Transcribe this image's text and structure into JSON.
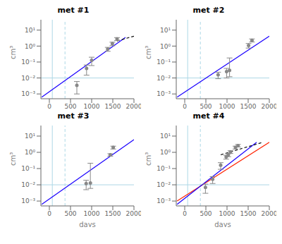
{
  "chart_data": [
    {
      "type": "line",
      "title": "met #1",
      "y_label": "cm³",
      "log": "y",
      "grid": false,
      "xlim": [
        -200,
        2000
      ],
      "xticks": [
        0,
        500,
        1000,
        1500,
        2000
      ],
      "ylim": [
        0.00050118723,
        44.668359
      ],
      "yticks": [
        {
          "value": 0.001,
          "label": "10⁻³"
        },
        {
          "value": 0.01,
          "label": "10⁻²"
        },
        {
          "value": 0.1,
          "label": "10⁻¹"
        },
        {
          "value": 1,
          "label": "10⁰"
        },
        {
          "value": 10,
          "label": "10¹"
        }
      ],
      "hlines": [
        {
          "y": 0.01,
          "color": "#add8e6",
          "line_style": "solid"
        }
      ],
      "vlines": [
        {
          "x": 70,
          "color": "#add8e6",
          "line_style": "solid"
        },
        {
          "x": 370,
          "color": "#add8e6",
          "line_style": "dashed"
        }
      ],
      "series": [
        {
          "type": "line",
          "color": "#1a00ff",
          "line_style": "solid",
          "x": [
            -180,
            1800
          ],
          "values": [
            0.00063095734,
            3.5481339
          ]
        },
        {
          "type": "line",
          "color": "#111111",
          "line_style": "dashed",
          "x": [
            1600,
            2000
          ],
          "values": [
            2.0892961,
            4.1686938
          ]
        },
        {
          "type": "scatter",
          "color": "#888888",
          "marker": "circle",
          "x": [
            650,
            880,
            1000,
            1380,
            1490,
            1600
          ],
          "values": [
            0.0035,
            0.04,
            0.13,
            0.65,
            1.4,
            2.8
          ],
          "error_low": [
            0.0025,
            0.025,
            0.07,
            0.18,
            0.35,
            0.6
          ],
          "error_high": [
            0.0025,
            0.025,
            0.07,
            0.18,
            0.35,
            0.6
          ]
        }
      ]
    },
    {
      "type": "line",
      "title": "met #2",
      "y_label": "cm³",
      "log": "y",
      "grid": false,
      "xlim": [
        -200,
        2000
      ],
      "xticks": [
        0,
        500,
        1000,
        1500,
        2000
      ],
      "ylim": [
        0.00050118723,
        44.668359
      ],
      "yticks": [
        {
          "value": 0.001,
          "label": "10⁻³"
        },
        {
          "value": 0.01,
          "label": "10⁻²"
        },
        {
          "value": 0.1,
          "label": "10⁻¹"
        },
        {
          "value": 1,
          "label": "10⁰"
        },
        {
          "value": 10,
          "label": "10¹"
        }
      ],
      "hlines": [
        {
          "y": 0.01,
          "color": "#add8e6",
          "line_style": "solid"
        }
      ],
      "vlines": [
        {
          "x": 70,
          "color": "#add8e6",
          "line_style": "solid"
        },
        {
          "x": 370,
          "color": "#add8e6",
          "line_style": "dashed"
        }
      ],
      "series": [
        {
          "type": "line",
          "color": "#1a00ff",
          "line_style": "solid",
          "x": [
            -180,
            2000
          ],
          "values": [
            0.00063095734,
            4.1686938
          ]
        },
        {
          "type": "scatter",
          "color": "#888888",
          "marker": "circle",
          "x": [
            790,
            990,
            1060,
            1510,
            1590
          ],
          "values": [
            0.016,
            0.025,
            0.03,
            1.1,
            2.3
          ],
          "error_low": [
            0.007,
            0.015,
            0.018,
            0.35,
            0.5
          ],
          "error_high": [
            0.007,
            0.015,
            0.15,
            0.35,
            0.5
          ]
        }
      ]
    },
    {
      "type": "line",
      "title": "met #3",
      "x_label": "days",
      "y_label": "cm³",
      "log": "y",
      "grid": false,
      "xlim": [
        -200,
        2000
      ],
      "xticks": [
        0,
        500,
        1000,
        1500,
        2000
      ],
      "ylim": [
        0.00050118723,
        44.668359
      ],
      "yticks": [
        {
          "value": 0.001,
          "label": "10⁻³"
        },
        {
          "value": 0.01,
          "label": "10⁻²"
        },
        {
          "value": 0.1,
          "label": "10⁻¹"
        },
        {
          "value": 1,
          "label": "10⁰"
        },
        {
          "value": 10,
          "label": "10¹"
        }
      ],
      "hlines": [
        {
          "y": 0.01,
          "color": "#add8e6",
          "line_style": "solid"
        }
      ],
      "vlines": [
        {
          "x": 70,
          "color": "#add8e6",
          "line_style": "solid"
        },
        {
          "x": 370,
          "color": "#add8e6",
          "line_style": "dashed"
        }
      ],
      "series": [
        {
          "type": "line",
          "color": "#1a00ff",
          "line_style": "solid",
          "x": [
            -180,
            2000
          ],
          "values": [
            0.00063095734,
            6.0255959
          ]
        },
        {
          "type": "scatter",
          "color": "#888888",
          "marker": "circle",
          "x": [
            870,
            970,
            1440,
            1510
          ],
          "values": [
            0.012,
            0.013,
            0.7,
            2.0
          ],
          "error_low": [
            0.007,
            0.007,
            0.12,
            0.4
          ],
          "error_high": [
            0.007,
            0.2,
            0.12,
            0.4
          ]
        }
      ]
    },
    {
      "type": "line",
      "title": "met #4",
      "x_label": "days",
      "y_label": "cm³",
      "log": "y",
      "grid": false,
      "xlim": [
        -200,
        2000
      ],
      "xticks": [
        0,
        500,
        1000,
        1500,
        2000
      ],
      "ylim": [
        0.00050118723,
        44.668359
      ],
      "yticks": [
        {
          "value": 0.001,
          "label": "10⁻³"
        },
        {
          "value": 0.01,
          "label": "10⁻²"
        },
        {
          "value": 0.1,
          "label": "10⁻¹"
        },
        {
          "value": 1,
          "label": "10⁰"
        },
        {
          "value": 10,
          "label": "10¹"
        }
      ],
      "hlines": [
        {
          "y": 0.01,
          "color": "#add8e6",
          "line_style": "solid"
        }
      ],
      "vlines": [
        {
          "x": 70,
          "color": "#add8e6",
          "line_style": "solid"
        },
        {
          "x": 370,
          "color": "#add8e6",
          "line_style": "dashed"
        }
      ],
      "series": [
        {
          "type": "line",
          "color": "#ff2200",
          "line_style": "solid",
          "x": [
            -180,
            2000
          ],
          "values": [
            0.001,
            4.1686938
          ]
        },
        {
          "type": "line",
          "color": "#1a00ff",
          "line_style": "solid",
          "x": [
            -180,
            1700
          ],
          "values": [
            0.00063095734,
            4.1686938
          ]
        },
        {
          "type": "line",
          "color": "#111111",
          "line_style": "dashed",
          "x": [
            850,
            1850
          ],
          "values": [
            0.70794578,
            4.1686938
          ]
        },
        {
          "type": "scatter",
          "color": "#888888",
          "marker": "circle",
          "x": [
            490,
            660,
            850,
            980,
            1030,
            1080,
            1200,
            1260
          ],
          "values": [
            0.007,
            0.022,
            0.16,
            0.52,
            0.68,
            1.05,
            2.0,
            2.6
          ],
          "error_low": [
            0.004,
            0.01,
            0.07,
            0.14,
            0.14,
            0.2,
            0.4,
            0.45
          ],
          "error_high": [
            0.004,
            0.01,
            0.07,
            0.14,
            0.14,
            0.2,
            0.4,
            0.45
          ]
        }
      ]
    }
  ]
}
